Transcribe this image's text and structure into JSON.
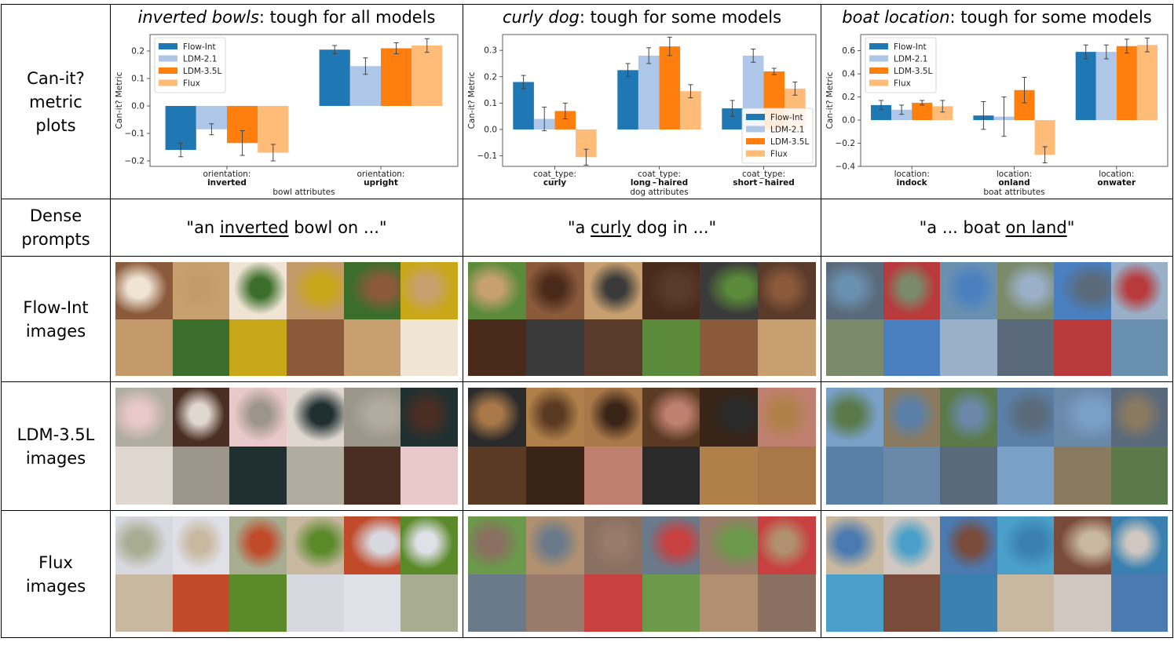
{
  "row_labels": [
    "Can-it?\nmetric\nplots",
    "Dense\nprompts",
    "Flow-Int\nimages",
    "LDM-3.5L\nimages",
    "Flux\nimages"
  ],
  "columns": [
    {
      "title_em": "inverted bowls",
      "title_rest": ": tough for all models",
      "prompt_pre": "\"an ",
      "prompt_u": "inverted",
      "prompt_post": " bowl on ...\""
    },
    {
      "title_em": "curly dog",
      "title_rest": ": tough for some models",
      "prompt_pre": "\"a ",
      "prompt_u": "curly",
      "prompt_post": " dog in ...\""
    },
    {
      "title_em": "boat location",
      "title_rest": ": tough for some models",
      "prompt_pre": "\"a ... boat ",
      "prompt_u": "on land",
      "prompt_post": "\""
    }
  ],
  "colors": {
    "Flow-Int": "#1f77b4",
    "LDM-2.1": "#aec7e8",
    "LDM-3.5L": "#ff7f0e",
    "Flux": "#ffbb78"
  },
  "chart_data": [
    {
      "type": "bar",
      "ylabel": "Can-it? Metric",
      "xlabel": "bowl attributes",
      "ylim": [
        -0.22,
        0.26
      ],
      "yticks": [
        -0.2,
        -0.1,
        0.0,
        0.1,
        0.2
      ],
      "categories": [
        [
          "orientation:",
          "inverted"
        ],
        [
          "orientation:",
          "upright"
        ]
      ],
      "legend": "top-left",
      "series": [
        {
          "name": "Flow-Int",
          "values": [
            -0.16,
            0.205
          ],
          "err": [
            0.025,
            0.015
          ]
        },
        {
          "name": "LDM-2.1",
          "values": [
            -0.085,
            0.145
          ],
          "err": [
            0.02,
            0.03
          ]
        },
        {
          "name": "LDM-3.5L",
          "values": [
            -0.135,
            0.21
          ],
          "err": [
            0.045,
            0.02
          ]
        },
        {
          "name": "Flux",
          "values": [
            -0.17,
            0.22
          ],
          "err": [
            0.03,
            0.025
          ]
        }
      ]
    },
    {
      "type": "bar",
      "ylabel": "Can-it? Metric",
      "xlabel": "dog attributes",
      "ylim": [
        -0.14,
        0.36
      ],
      "yticks": [
        -0.1,
        0.0,
        0.1,
        0.2,
        0.3
      ],
      "categories": [
        [
          "coat_type:",
          "curly"
        ],
        [
          "coat_type:",
          "long – haired"
        ],
        [
          "coat_type:",
          "short – haired"
        ]
      ],
      "legend": "lower-right",
      "series": [
        {
          "name": "Flow-Int",
          "values": [
            0.18,
            0.225,
            0.08
          ],
          "err": [
            0.025,
            0.025,
            0.03
          ]
        },
        {
          "name": "LDM-2.1",
          "values": [
            0.04,
            0.28,
            0.28
          ],
          "err": [
            0.045,
            0.03,
            0.025
          ]
        },
        {
          "name": "LDM-3.5L",
          "values": [
            0.07,
            0.315,
            0.22
          ],
          "err": [
            0.03,
            0.035,
            0.012
          ]
        },
        {
          "name": "Flux",
          "values": [
            -0.105,
            0.145,
            0.155
          ],
          "err": [
            0.03,
            0.025,
            0.025
          ]
        }
      ]
    },
    {
      "type": "bar",
      "ylabel": "Can-it? Metric",
      "xlabel": "boat attributes",
      "ylim": [
        -0.4,
        0.74
      ],
      "yticks": [
        -0.4,
        -0.2,
        0.0,
        0.2,
        0.4,
        0.6
      ],
      "categories": [
        [
          "location:",
          "indock"
        ],
        [
          "location:",
          "onland"
        ],
        [
          "location:",
          "onwater"
        ]
      ],
      "legend": "top-left",
      "series": [
        {
          "name": "Flow-Int",
          "values": [
            0.13,
            0.04,
            0.59
          ],
          "err": [
            0.04,
            0.12,
            0.06
          ]
        },
        {
          "name": "LDM-2.1",
          "values": [
            0.09,
            0.03,
            0.59
          ],
          "err": [
            0.04,
            0.17,
            0.06
          ]
        },
        {
          "name": "LDM-3.5L",
          "values": [
            0.15,
            0.26,
            0.64
          ],
          "err": [
            0.02,
            0.11,
            0.06
          ]
        },
        {
          "name": "Flux",
          "values": [
            0.12,
            -0.3,
            0.65
          ],
          "err": [
            0.05,
            0.07,
            0.06
          ]
        }
      ]
    }
  ],
  "image_palettes": [
    [
      [
        "#8a5a3a",
        "#c8a070",
        "#f0e4d4",
        "#c49a6a",
        "#3a6e2a",
        "#c8a818"
      ],
      [
        "#b0aca0",
        "#4a2e24",
        "#e8c8c8",
        "#e0d8d0",
        "#9c968a",
        "#203030"
      ],
      [
        "#d8d8e0",
        "#e0e0e8",
        "#a8ac90",
        "#c8b8a0",
        "#c04a2a",
        "#5a8a2a"
      ],
      [
        "#e8d8d0",
        "#d8cce8",
        "#b0b0b0",
        "#ccb8a0",
        "#f0f0f0",
        "#a8b0c0"
      ],
      [
        "#7a4a2a",
        "#f0f0ec",
        "#b8aa9a",
        "#c0a080",
        "#4a4440",
        "#d8d4cc"
      ],
      [
        "#e08a30",
        "#7a6a50",
        "#e8e8e4",
        "#b05a20",
        "#6a5a4a",
        "#9aa0a0"
      ]
    ],
    [
      [
        "#5a8a3a",
        "#8a5a3a",
        "#c8a070",
        "#4a2a1a",
        "#3a3a3a",
        "#5a3a2a"
      ],
      [
        "#2a2a2a",
        "#b0804a",
        "#a87848",
        "#5a3a22",
        "#3a2418",
        "#c08070"
      ],
      [
        "#6a9a4a",
        "#b09070",
        "#8a7060",
        "#6a7a8a",
        "#9a7a6a",
        "#c84040"
      ],
      [
        "#4a90c8",
        "#8a6040",
        "#6a9a4a",
        "#7a8a8a",
        "#3a3a3a",
        "#d8d8d0"
      ],
      [
        "#7a9a5a",
        "#8a5a3a",
        "#c06040",
        "#4a6a8a",
        "#8a6a50",
        "#d08040"
      ],
      [
        "#6a5040",
        "#c08a50",
        "#e08040",
        "#a09080",
        "#a07050",
        "#4a4a50"
      ]
    ],
    [
      [
        "#5a6a7a",
        "#b83a3a",
        "#6a90b0",
        "#7a8a6a",
        "#4a80c0",
        "#9ab0c8"
      ],
      [
        "#7aa0c8",
        "#8a7a60",
        "#5a7a4a",
        "#5a80a8",
        "#6a88a8",
        "#5a6a7a"
      ],
      [
        "#c8b8a0",
        "#d0c8c0",
        "#4a7ab0",
        "#4aa0c8",
        "#7a4a3a",
        "#3a80b0"
      ],
      [
        "#6a7a50",
        "#a04a2a",
        "#6a8a4a",
        "#5a8a9a",
        "#8a9a8a",
        "#8aa0b8"
      ],
      [
        "#8aa0a8",
        "#5a6a5a",
        "#6a8090",
        "#3a5a6a",
        "#9aa0a0",
        "#5a7a8a"
      ],
      [
        "#8aa0a8",
        "#6a7a80",
        "#a0b0b8",
        "#7a9098",
        "#8aa8b0",
        "#7a98a8"
      ]
    ]
  ]
}
